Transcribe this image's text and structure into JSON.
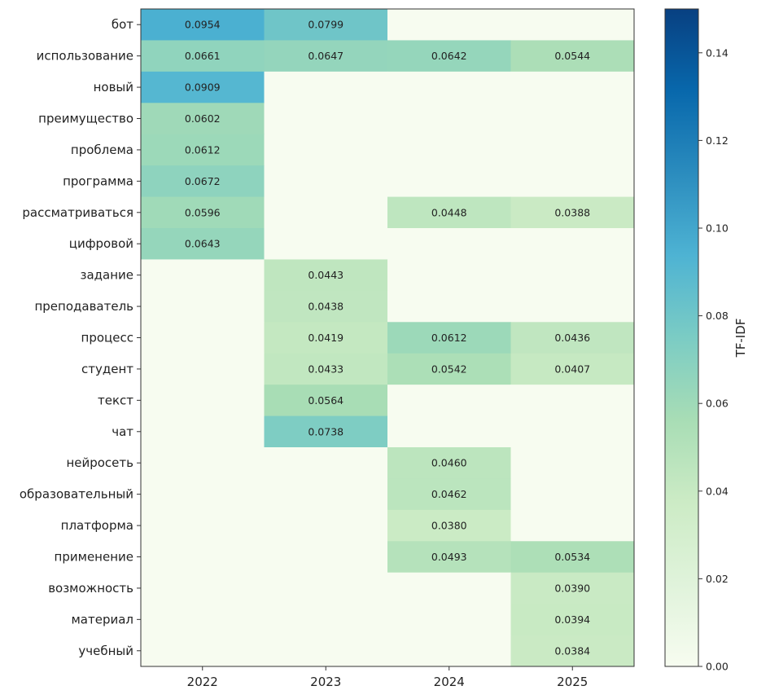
{
  "chart_data": {
    "type": "heatmap",
    "title": "",
    "xlabel": "",
    "ylabel": "",
    "x_categories": [
      "2022",
      "2023",
      "2024",
      "2025"
    ],
    "y_categories": [
      "бот",
      "использование",
      "новый",
      "преимущество",
      "проблема",
      "программа",
      "рассматриваться",
      "цифровой",
      "задание",
      "преподаватель",
      "процесс",
      "студент",
      "текст",
      "чат",
      "нейросеть",
      "образовательный",
      "платформа",
      "применение",
      "возможность",
      "материал",
      "учебный"
    ],
    "values": [
      [
        0.0954,
        0.0799,
        0,
        0
      ],
      [
        0.0661,
        0.0647,
        0.0642,
        0.0544
      ],
      [
        0.0909,
        0,
        0,
        0
      ],
      [
        0.0602,
        0,
        0,
        0
      ],
      [
        0.0612,
        0,
        0,
        0
      ],
      [
        0.0672,
        0,
        0,
        0
      ],
      [
        0.0596,
        0,
        0.0448,
        0.0388
      ],
      [
        0.0643,
        0,
        0,
        0
      ],
      [
        0,
        0.0443,
        0,
        0
      ],
      [
        0,
        0.0438,
        0,
        0
      ],
      [
        0,
        0.0419,
        0.0612,
        0.0436
      ],
      [
        0,
        0.0433,
        0.0542,
        0.0407
      ],
      [
        0,
        0.0564,
        0,
        0
      ],
      [
        0,
        0.0738,
        0,
        0
      ],
      [
        0,
        0,
        0.046,
        0
      ],
      [
        0,
        0,
        0.0462,
        0
      ],
      [
        0,
        0,
        0.038,
        0
      ],
      [
        0,
        0,
        0.0493,
        0.0534
      ],
      [
        0,
        0,
        0,
        0.039
      ],
      [
        0,
        0,
        0,
        0.0394
      ],
      [
        0,
        0,
        0,
        0.0384
      ]
    ],
    "annotation_format": "4 decimals, zeros not annotated",
    "colormap": "GnBu",
    "color_range": [
      0.0,
      0.15
    ],
    "colorbar": {
      "label": "TF-IDF",
      "ticks": [
        0.0,
        0.02,
        0.04,
        0.06,
        0.08,
        0.1,
        0.12,
        0.14
      ],
      "tick_labels": [
        "0.00",
        "0.02",
        "0.04",
        "0.06",
        "0.08",
        "0.10",
        "0.12",
        "0.14"
      ],
      "placement": "right"
    },
    "colormap_stops": [
      "#f7fcf0",
      "#e0f3db",
      "#ccebc5",
      "#a8ddb5",
      "#7bccc4",
      "#4eb3d3",
      "#2b8cbe",
      "#0868ac",
      "#084081"
    ]
  }
}
